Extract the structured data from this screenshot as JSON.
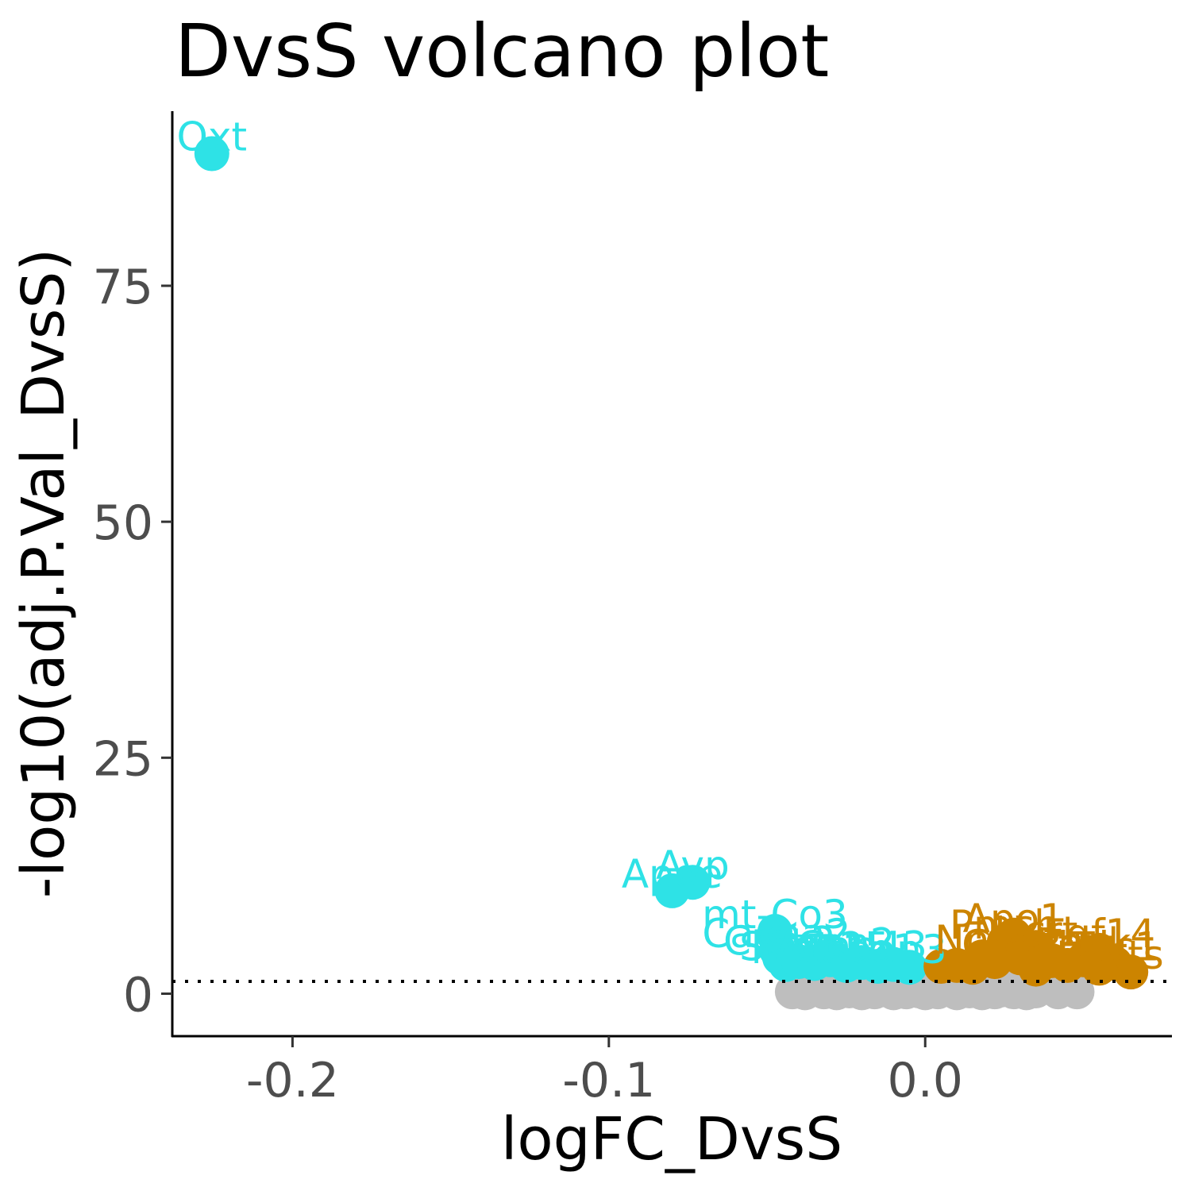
{
  "chart_data": {
    "type": "scatter",
    "title": "DvsS volcano plot",
    "xlabel": "logFC_DvsS",
    "ylabel": "-log10(adj.P.Val_DvsS)",
    "xlim": [
      -0.238,
      0.078
    ],
    "ylim": [
      -4.5,
      93.5
    ],
    "x_ticks": [
      -0.2,
      -0.1,
      0.0
    ],
    "x_tick_labels": [
      "-0.2",
      "-0.1",
      "0.0"
    ],
    "y_ticks": [
      0,
      25,
      50,
      75
    ],
    "y_tick_labels": [
      "0",
      "25",
      "50",
      "75"
    ],
    "threshold_line": {
      "y": 1.3,
      "style": "dotted"
    },
    "grid": false,
    "legend": "none",
    "colors": {
      "down": "#2ee2e6",
      "up": "#cc8400",
      "ns": "#bebebe"
    },
    "series": [
      {
        "group": "down",
        "points": [
          {
            "x": -0.2255,
            "y": 89.0,
            "label": "Oxt"
          },
          {
            "x": -0.0735,
            "y": 11.8,
            "label": "Avp"
          },
          {
            "x": -0.08,
            "y": 10.9,
            "label": "Apoe"
          },
          {
            "x": -0.0475,
            "y": 6.6,
            "label": "mt-Co3"
          },
          {
            "x": -0.047,
            "y": 4.6,
            "label": "Cacna2"
          },
          {
            "x": -0.046,
            "y": 3.8,
            "label": "Cplx2"
          },
          {
            "x": -0.044,
            "y": 3.1,
            "label": ""
          },
          {
            "x": -0.04,
            "y": 3.4,
            "label": "Nrgn"
          },
          {
            "x": -0.035,
            "y": 3.2,
            "label": "Snap25"
          },
          {
            "x": -0.03,
            "y": 3.6,
            "label": "Stmn2"
          },
          {
            "x": -0.025,
            "y": 3.0,
            "label": "Atp1b1"
          },
          {
            "x": -0.02,
            "y": 3.3,
            "label": "Gap43"
          },
          {
            "x": -0.015,
            "y": 2.9,
            "label": "Tspan3"
          },
          {
            "x": -0.01,
            "y": 3.1,
            "label": ""
          },
          {
            "x": -0.005,
            "y": 2.8,
            "label": ""
          }
        ]
      },
      {
        "group": "up",
        "points": [
          {
            "x": 0.028,
            "y": 6.2,
            "label": "Apo1"
          },
          {
            "x": 0.025,
            "y": 5.5,
            "label": "Pmch"
          },
          {
            "x": 0.035,
            "y": 4.9,
            "label": "Hcrt"
          },
          {
            "x": 0.055,
            "y": 4.6,
            "label": "Fgf14"
          },
          {
            "x": 0.018,
            "y": 3.9,
            "label": "Nnat"
          },
          {
            "x": 0.022,
            "y": 3.4,
            "label": "Gal"
          },
          {
            "x": 0.03,
            "y": 3.8,
            "label": "Sst"
          },
          {
            "x": 0.04,
            "y": 3.5,
            "label": "Cartpt"
          },
          {
            "x": 0.045,
            "y": 3.0,
            "label": "Trh"
          },
          {
            "x": 0.05,
            "y": 3.6,
            "label": "Penk"
          },
          {
            "x": 0.06,
            "y": 3.2,
            "label": "Tac1"
          },
          {
            "x": 0.065,
            "y": 2.3,
            "label": "Nts"
          },
          {
            "x": 0.01,
            "y": 3.0,
            "label": ""
          },
          {
            "x": 0.015,
            "y": 2.8,
            "label": ""
          },
          {
            "x": 0.035,
            "y": 2.6,
            "label": ""
          },
          {
            "x": 0.055,
            "y": 2.7,
            "label": ""
          },
          {
            "x": 0.005,
            "y": 2.9,
            "label": ""
          }
        ]
      },
      {
        "group": "ns",
        "points": [
          {
            "x": -0.042,
            "y": 0.2
          },
          {
            "x": -0.04,
            "y": 0.6
          },
          {
            "x": -0.038,
            "y": 0.1
          },
          {
            "x": -0.036,
            "y": 0.4
          },
          {
            "x": -0.034,
            "y": 0.8
          },
          {
            "x": -0.032,
            "y": 0.2
          },
          {
            "x": -0.03,
            "y": 0.5
          },
          {
            "x": -0.028,
            "y": 0.1
          },
          {
            "x": -0.026,
            "y": 0.9
          },
          {
            "x": -0.024,
            "y": 0.3
          },
          {
            "x": -0.022,
            "y": 0.6
          },
          {
            "x": -0.02,
            "y": 0.1
          },
          {
            "x": -0.018,
            "y": 0.7
          },
          {
            "x": -0.016,
            "y": 0.2
          },
          {
            "x": -0.014,
            "y": 0.4
          },
          {
            "x": -0.012,
            "y": 0.9
          },
          {
            "x": -0.01,
            "y": 0.1
          },
          {
            "x": -0.008,
            "y": 0.5
          },
          {
            "x": -0.006,
            "y": 0.2
          },
          {
            "x": -0.004,
            "y": 0.8
          },
          {
            "x": -0.002,
            "y": 0.3
          },
          {
            "x": 0.0,
            "y": 0.1
          },
          {
            "x": 0.002,
            "y": 0.6
          },
          {
            "x": 0.004,
            "y": 0.2
          },
          {
            "x": 0.006,
            "y": 0.9
          },
          {
            "x": 0.008,
            "y": 0.4
          },
          {
            "x": 0.01,
            "y": 0.1
          },
          {
            "x": 0.012,
            "y": 0.7
          },
          {
            "x": 0.014,
            "y": 0.3
          },
          {
            "x": 0.016,
            "y": 0.5
          },
          {
            "x": 0.018,
            "y": 0.1
          },
          {
            "x": 0.02,
            "y": 0.8
          },
          {
            "x": 0.022,
            "y": 0.2
          },
          {
            "x": 0.024,
            "y": 0.4
          },
          {
            "x": 0.026,
            "y": 0.9
          },
          {
            "x": 0.028,
            "y": 0.2
          },
          {
            "x": 0.03,
            "y": 0.6
          },
          {
            "x": 0.032,
            "y": 0.1
          },
          {
            "x": 0.035,
            "y": 0.3
          },
          {
            "x": 0.038,
            "y": 0.7
          },
          {
            "x": 0.042,
            "y": 0.2
          },
          {
            "x": 0.046,
            "y": 0.5
          },
          {
            "x": 0.048,
            "y": 0.2
          }
        ]
      }
    ]
  }
}
